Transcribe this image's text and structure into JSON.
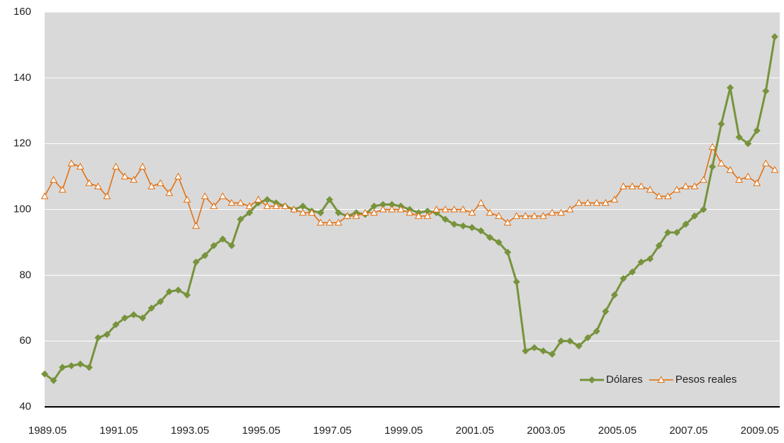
{
  "chart_data": {
    "type": "line",
    "categories": [
      "1989.05",
      null,
      null,
      null,
      null,
      null,
      null,
      null,
      "1991.05",
      null,
      null,
      null,
      null,
      null,
      null,
      null,
      "1993.05",
      null,
      null,
      null,
      null,
      null,
      null,
      null,
      "1995.05",
      null,
      null,
      null,
      null,
      null,
      null,
      null,
      "1997.05",
      null,
      null,
      null,
      null,
      null,
      null,
      null,
      "1999.05",
      null,
      null,
      null,
      null,
      null,
      null,
      null,
      "2001.05",
      null,
      null,
      null,
      null,
      null,
      null,
      null,
      "2003.05",
      null,
      null,
      null,
      null,
      null,
      null,
      null,
      "2005.05",
      null,
      null,
      null,
      null,
      null,
      null,
      null,
      "2007.05",
      null,
      null,
      null,
      null,
      null,
      null,
      null,
      "2009.05",
      null,
      null
    ],
    "series": [
      {
        "name": "Dólares",
        "color": "#77933c",
        "marker": "diamond",
        "values": [
          50,
          48,
          52,
          52.5,
          53,
          52,
          61,
          62,
          65,
          67,
          68,
          67,
          70,
          72,
          75,
          75.5,
          74,
          84,
          86,
          89,
          91,
          89,
          97,
          99,
          102,
          103,
          102,
          101,
          100,
          101,
          99.5,
          99,
          103,
          99,
          98,
          99,
          98.5,
          101,
          101.5,
          101.5,
          101,
          100,
          99,
          99.5,
          99,
          97,
          95.5,
          95,
          94.5,
          93.5,
          91.5,
          90,
          87,
          78,
          57,
          58,
          57,
          56,
          60,
          60,
          58.5,
          61,
          63,
          69,
          74,
          79,
          81,
          84,
          85,
          89,
          93,
          93,
          95.5,
          98,
          100,
          113,
          126,
          137,
          122,
          120,
          124,
          136,
          152.5
        ]
      },
      {
        "name": "Pesos reales",
        "color": "#e36c09",
        "marker": "triangle",
        "values": [
          104,
          109,
          106,
          114,
          113,
          108,
          107,
          104,
          113,
          110,
          109,
          113,
          107,
          108,
          105,
          110,
          103,
          95,
          104,
          101,
          104,
          102,
          102,
          101,
          103,
          101,
          101,
          101,
          100,
          99,
          99,
          96,
          96,
          96,
          98,
          98,
          99,
          99,
          100,
          100,
          100,
          99,
          98,
          98,
          100,
          100,
          100,
          100,
          99,
          102,
          99,
          98,
          96,
          98,
          98,
          98,
          98,
          99,
          99,
          100,
          102,
          102,
          102,
          102,
          103,
          107,
          107,
          107,
          106,
          104,
          104,
          106,
          107,
          107,
          109,
          119,
          114,
          112,
          109,
          110,
          108,
          114,
          112
        ]
      }
    ],
    "ylim": [
      40,
      160
    ],
    "yticks": [
      40,
      60,
      80,
      100,
      120,
      140,
      160
    ],
    "grid": true,
    "legend": "lower right"
  }
}
